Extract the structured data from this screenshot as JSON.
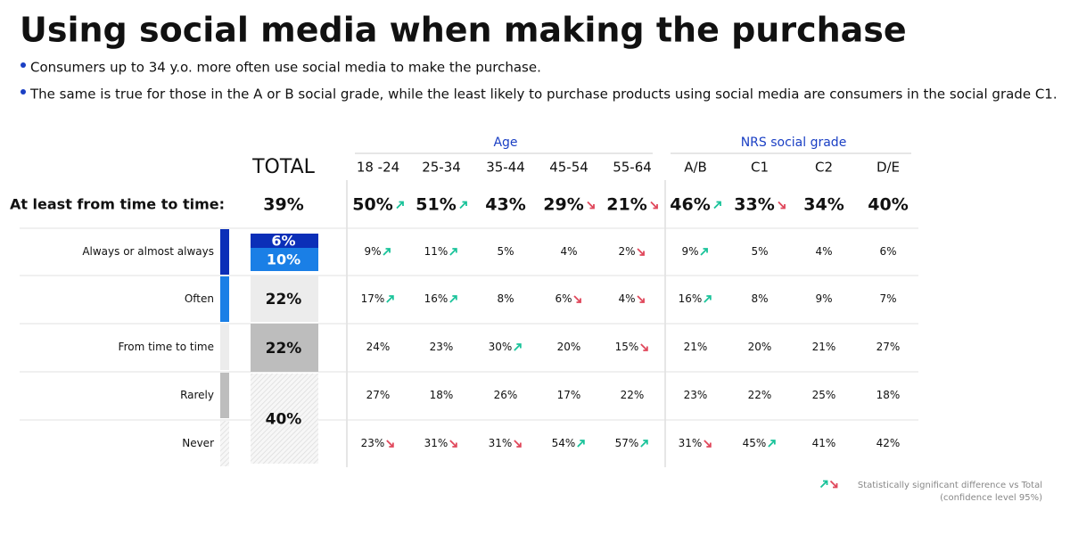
{
  "title": "Using social media when making the purchase",
  "bullets": [
    "Consumers up to 34 y.o. more often use social media to make the purchase.",
    "The same is true for those in the A or B social grade, while the least likely to purchase products using social media are consumers in the social grade C1."
  ],
  "groups": [
    "Age",
    "NRS social grade"
  ],
  "columns": [
    "TOTAL",
    "18 -24",
    "25-34",
    "35-44",
    "45-54",
    "55-64",
    "A/B",
    "C1",
    "C2",
    "D/E"
  ],
  "summary": {
    "label": "At least from time to time:",
    "cells": [
      "39%",
      "50%",
      "51%",
      "43%",
      "29%",
      "21%",
      "46%",
      "33%",
      "34%",
      "40%"
    ],
    "arrows": [
      null,
      "up",
      "up",
      null,
      "down",
      "down",
      "up",
      "down",
      null,
      null
    ]
  },
  "rows": [
    {
      "label": "Always or almost always",
      "color": "#0b2fb8",
      "cells": [
        "9%",
        "11%",
        "5%",
        "4%",
        "2%",
        "9%",
        "5%",
        "4%",
        "6%"
      ],
      "arrows": [
        "up",
        "up",
        null,
        null,
        "down",
        "up",
        null,
        null,
        null
      ]
    },
    {
      "label": "Often",
      "color": "#1a7fe6",
      "cells": [
        "17%",
        "16%",
        "8%",
        "6%",
        "4%",
        "16%",
        "8%",
        "9%",
        "7%"
      ],
      "arrows": [
        "up",
        "up",
        null,
        "down",
        "down",
        "up",
        null,
        null,
        null
      ]
    },
    {
      "label": "From time to time",
      "color": "#ececec",
      "cells": [
        "24%",
        "23%",
        "30%",
        "20%",
        "15%",
        "21%",
        "20%",
        "21%",
        "27%"
      ],
      "arrows": [
        null,
        null,
        "up",
        null,
        "down",
        null,
        null,
        null,
        null
      ]
    },
    {
      "label": "Rarely",
      "color": "#bdbdbd",
      "cells": [
        "27%",
        "18%",
        "26%",
        "17%",
        "22%",
        "23%",
        "22%",
        "25%",
        "18%"
      ],
      "arrows": [
        null,
        null,
        null,
        null,
        null,
        null,
        null,
        null,
        null
      ]
    },
    {
      "label": "Never",
      "color": "hatch",
      "cells": [
        "23%",
        "31%",
        "31%",
        "54%",
        "57%",
        "31%",
        "45%",
        "41%",
        "42%"
      ],
      "arrows": [
        "down",
        "down",
        "down",
        "up",
        "up",
        "down",
        "up",
        null,
        null
      ]
    }
  ],
  "total_segments": [
    {
      "label": "6%",
      "color": "#0b2fb8"
    },
    {
      "label": "10%",
      "color": "#1a7fe6"
    },
    {
      "label": "22%",
      "color": "#ececec"
    },
    {
      "label": "22%",
      "color": "#bdbdbd"
    },
    {
      "label": "40%",
      "color": "hatch"
    }
  ],
  "legend": [
    "Statistically significant difference vs Total",
    "(confidence level 95%)"
  ]
}
